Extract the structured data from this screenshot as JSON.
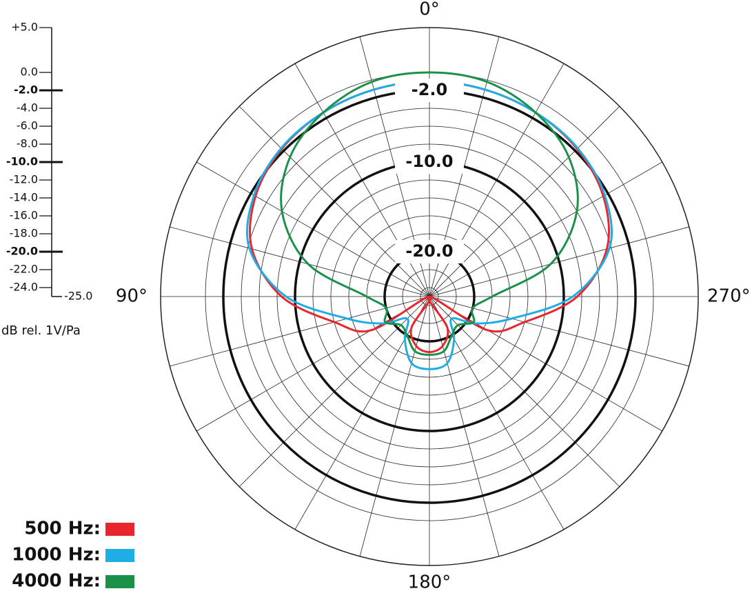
{
  "chart_data": {
    "type": "polar",
    "axis_title": "dB rel. 1V/Pa",
    "rlim": [
      -25,
      5
    ],
    "rticks": [
      {
        "value": 5,
        "label": "+5.0"
      },
      {
        "value": 0,
        "label": "0.0"
      },
      {
        "value": -2,
        "label": "-2.0"
      },
      {
        "value": -4,
        "label": "-4.0"
      },
      {
        "value": -6,
        "label": "-6.0"
      },
      {
        "value": -8,
        "label": "-8.0"
      },
      {
        "value": -10,
        "label": "-10.0"
      },
      {
        "value": -12,
        "label": "-12.0"
      },
      {
        "value": -14,
        "label": "-14.0"
      },
      {
        "value": -16,
        "label": "-16.0"
      },
      {
        "value": -18,
        "label": "-18.0"
      },
      {
        "value": -20,
        "label": "-20.0"
      },
      {
        "value": -22,
        "label": "-22.0"
      },
      {
        "value": -24,
        "label": "-24.0"
      },
      {
        "value": -25,
        "label": "-25.0"
      }
    ],
    "highlight_rings": [
      {
        "value": -2,
        "label": "-2.0"
      },
      {
        "value": -10,
        "label": "-10.0"
      },
      {
        "value": -20,
        "label": "-20.0"
      }
    ],
    "angle_labels": [
      {
        "value": 0,
        "label": "0°"
      },
      {
        "value": 90,
        "label": "90°"
      },
      {
        "value": 180,
        "label": "180°"
      },
      {
        "value": 270,
        "label": "270°"
      }
    ],
    "angles": [
      0,
      15,
      30,
      45,
      60,
      75,
      90,
      105,
      120,
      135,
      150,
      165,
      180,
      195,
      210,
      225,
      240,
      255,
      270,
      285,
      300,
      315,
      330,
      345
    ],
    "series": [
      {
        "name": "500 Hz:",
        "color": "#e8262d",
        "values": [
          -1,
          -1.1,
          -1.3,
          -1.7,
          -2.6,
          -4.5,
          -8.5,
          -14,
          -17.5,
          -25,
          -21,
          -19.3,
          -18.8,
          -19.3,
          -21,
          -25,
          -17.5,
          -14,
          -8.5,
          -4.5,
          -2.6,
          -1.7,
          -1.3,
          -1.1
        ]
      },
      {
        "name": "1000 Hz:",
        "color": "#1eaee6",
        "values": [
          -1,
          -1.1,
          -1.3,
          -1.6,
          -2.4,
          -4.2,
          -9,
          -15.5,
          -19,
          -21.5,
          -19.5,
          -17.3,
          -16.9,
          -17.3,
          -19.5,
          -21.5,
          -19,
          -15.5,
          -9,
          -4.2,
          -2.4,
          -1.6,
          -1.3,
          -1.1
        ]
      },
      {
        "name": "4000 Hz:",
        "color": "#1a9148",
        "values": [
          0,
          -0.2,
          -1.3,
          -3,
          -6,
          -11,
          -18,
          -20,
          -19.3,
          -20.5,
          -20,
          -18.7,
          -18.5,
          -18.7,
          -20,
          -20.5,
          -19.3,
          -20,
          -18,
          -11,
          -6,
          -3,
          -1.3,
          -0.2
        ]
      }
    ]
  }
}
